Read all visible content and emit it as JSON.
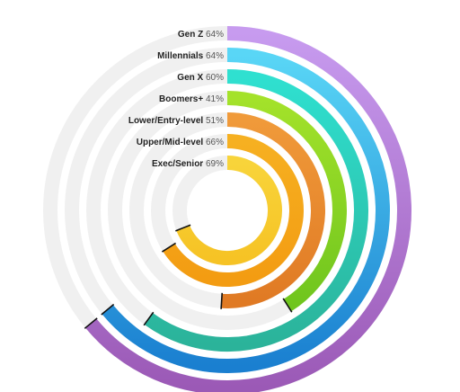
{
  "chart_data": {
    "type": "radial_bar",
    "title": "",
    "max": 100,
    "series": [
      {
        "category": "Gen Z",
        "value": 64,
        "value_label": "64%",
        "color": "#c79bef",
        "color_end": "#9b59b6"
      },
      {
        "category": "Millennials",
        "value": 64,
        "value_label": "64%",
        "color": "#59d6f6",
        "color_end": "#1a7fd0"
      },
      {
        "category": "Gen X",
        "value": 60,
        "value_label": "60%",
        "color": "#2fe0d0",
        "color_end": "#2bb39a"
      },
      {
        "category": "Boomers+",
        "value": 41,
        "value_label": "41%",
        "color": "#a4e22a",
        "color_end": "#6fc51e"
      },
      {
        "category": "Lower/Entry-level",
        "value": 51,
        "value_label": "51%",
        "color": "#f09a3a",
        "color_end": "#e07a24"
      },
      {
        "category": "Upper/Mid-level",
        "value": 66,
        "value_label": "66%",
        "color": "#f6b021",
        "color_end": "#f39c12"
      },
      {
        "category": "Exec/Senior",
        "value": 69,
        "value_label": "69%",
        "color": "#f8d43a",
        "color_end": "#f6c325"
      }
    ],
    "track_color": "#f0f0f0",
    "grid": false,
    "legend": "none"
  }
}
